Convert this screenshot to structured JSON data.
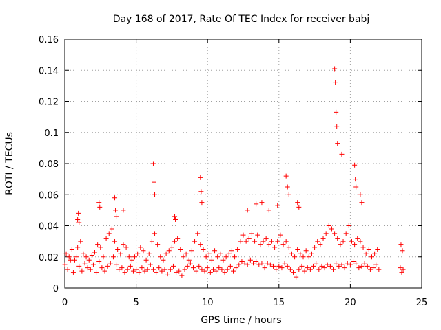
{
  "chart_data": {
    "type": "scatter",
    "title": "Day 168 of 2017, Rate Of TEC Index for receiver babj",
    "xlabel": "GPS time / hours",
    "ylabel": "ROTI / TECUs",
    "xlim": [
      0,
      25
    ],
    "ylim": [
      0,
      0.16
    ],
    "xticks": [
      0,
      5,
      10,
      15,
      20,
      25
    ],
    "xtick_labels": [
      "0",
      "5",
      "10",
      "15",
      "20",
      "25"
    ],
    "yticks": [
      0,
      0.02,
      0.04,
      0.06,
      0.08,
      0.1,
      0.12,
      0.14,
      0.16
    ],
    "ytick_labels": [
      "0",
      "0.02",
      "0.04",
      "0.06",
      "0.08",
      "0.1",
      "0.12",
      "0.14",
      "0.16"
    ],
    "grid": true,
    "marker": "+",
    "color": "#ff0000",
    "series": [
      {
        "name": "ROTI",
        "x": [
          0.0,
          0.2,
          0.4,
          0.6,
          0.8,
          1.0,
          1.2,
          1.4,
          1.6,
          1.8,
          2.0,
          2.2,
          2.4,
          2.6,
          2.8,
          3.0,
          3.2,
          3.4,
          3.6,
          3.8,
          4.0,
          4.2,
          4.4,
          4.6,
          4.8,
          5.0,
          5.2,
          5.4,
          5.6,
          5.8,
          6.0,
          6.2,
          6.4,
          6.6,
          6.8,
          7.0,
          7.2,
          7.4,
          7.6,
          7.8,
          8.0,
          8.2,
          8.4,
          8.6,
          8.8,
          9.0,
          9.2,
          9.4,
          9.6,
          9.8,
          10.0,
          10.2,
          10.4,
          10.6,
          10.8,
          11.0,
          11.2,
          11.4,
          11.6,
          11.8,
          12.0,
          12.2,
          12.4,
          12.6,
          12.8,
          13.0,
          13.2,
          13.4,
          13.6,
          13.8,
          14.0,
          14.2,
          14.4,
          14.6,
          14.8,
          15.0,
          15.2,
          15.4,
          15.6,
          15.8,
          16.0,
          16.2,
          16.4,
          16.6,
          16.8,
          17.0,
          17.2,
          17.4,
          17.6,
          17.8,
          18.0,
          18.2,
          18.4,
          18.6,
          18.8,
          19.0,
          19.2,
          19.4,
          19.6,
          19.8,
          20.0,
          20.2,
          20.4,
          20.6,
          20.8,
          21.0,
          21.2,
          21.4,
          21.6,
          21.8,
          22.0,
          23.5,
          23.6,
          23.7,
          0.1,
          0.3,
          0.5,
          0.7,
          0.9,
          1.1,
          1.3,
          1.5,
          1.7,
          1.9,
          2.1,
          2.3,
          2.5,
          2.7,
          2.9,
          3.1,
          3.3,
          3.5,
          3.7,
          3.9,
          4.1,
          4.3,
          4.5,
          4.7,
          4.9,
          5.1,
          5.3,
          5.5,
          5.7,
          5.9,
          6.1,
          6.3,
          6.5,
          6.7,
          6.9,
          7.1,
          7.3,
          7.5,
          7.7,
          7.9,
          8.1,
          8.3,
          8.5,
          8.7,
          8.9,
          9.1,
          9.3,
          9.5,
          9.7,
          9.9,
          10.1,
          10.3,
          10.5,
          10.7,
          10.9,
          11.1,
          11.3,
          11.5,
          11.7,
          11.9,
          12.1,
          12.3,
          12.5,
          12.7,
          12.9,
          13.1,
          13.3,
          13.5,
          13.7,
          13.9,
          14.1,
          14.3,
          14.5,
          14.7,
          14.9,
          15.1,
          15.3,
          15.5,
          15.7,
          15.9,
          16.1,
          16.3,
          16.5,
          16.7,
          16.9,
          17.1,
          17.3,
          17.5,
          17.7,
          17.9,
          18.1,
          18.3,
          18.5,
          18.7,
          18.9,
          19.1,
          19.3,
          19.5,
          19.7,
          19.9,
          20.1,
          20.3,
          20.5,
          20.7,
          20.9,
          21.1,
          21.3,
          21.5,
          21.7,
          21.9,
          23.55,
          23.65,
          0.9,
          0.95,
          1.0,
          2.4,
          2.45,
          3.5,
          3.55,
          3.6,
          4.1,
          6.2,
          6.25,
          6.3,
          7.7,
          7.75,
          9.5,
          9.55,
          9.6,
          12.8,
          13.4,
          13.8,
          14.3,
          14.9,
          15.5,
          15.6,
          15.7,
          16.3,
          16.4,
          18.9,
          18.95,
          19.0,
          19.05,
          19.1,
          19.4,
          20.3,
          20.35,
          20.4,
          20.7,
          20.8
        ],
        "y": [
          0.015,
          0.012,
          0.018,
          0.01,
          0.02,
          0.014,
          0.011,
          0.016,
          0.013,
          0.012,
          0.015,
          0.01,
          0.017,
          0.013,
          0.011,
          0.014,
          0.016,
          0.02,
          0.015,
          0.012,
          0.013,
          0.01,
          0.012,
          0.014,
          0.011,
          0.012,
          0.01,
          0.013,
          0.011,
          0.012,
          0.015,
          0.012,
          0.01,
          0.013,
          0.011,
          0.012,
          0.009,
          0.012,
          0.014,
          0.01,
          0.011,
          0.008,
          0.012,
          0.014,
          0.016,
          0.013,
          0.011,
          0.014,
          0.012,
          0.011,
          0.013,
          0.01,
          0.012,
          0.011,
          0.013,
          0.012,
          0.01,
          0.012,
          0.014,
          0.011,
          0.013,
          0.015,
          0.017,
          0.016,
          0.015,
          0.018,
          0.016,
          0.017,
          0.015,
          0.016,
          0.013,
          0.016,
          0.015,
          0.014,
          0.012,
          0.014,
          0.013,
          0.016,
          0.014,
          0.012,
          0.01,
          0.007,
          0.012,
          0.014,
          0.011,
          0.013,
          0.012,
          0.014,
          0.016,
          0.012,
          0.014,
          0.013,
          0.015,
          0.014,
          0.012,
          0.016,
          0.014,
          0.015,
          0.013,
          0.016,
          0.015,
          0.017,
          0.016,
          0.013,
          0.014,
          0.016,
          0.014,
          0.012,
          0.013,
          0.015,
          0.012,
          0.013,
          0.01,
          0.012,
          0.022,
          0.02,
          0.025,
          0.018,
          0.026,
          0.03,
          0.022,
          0.02,
          0.018,
          0.021,
          0.023,
          0.028,
          0.026,
          0.02,
          0.032,
          0.035,
          0.038,
          0.03,
          0.025,
          0.022,
          0.028,
          0.026,
          0.02,
          0.018,
          0.02,
          0.022,
          0.026,
          0.024,
          0.018,
          0.022,
          0.03,
          0.035,
          0.028,
          0.02,
          0.018,
          0.022,
          0.024,
          0.026,
          0.03,
          0.032,
          0.025,
          0.02,
          0.022,
          0.018,
          0.024,
          0.03,
          0.035,
          0.028,
          0.025,
          0.02,
          0.022,
          0.018,
          0.024,
          0.02,
          0.022,
          0.018,
          0.02,
          0.022,
          0.024,
          0.02,
          0.025,
          0.03,
          0.034,
          0.03,
          0.032,
          0.035,
          0.03,
          0.034,
          0.028,
          0.03,
          0.032,
          0.028,
          0.03,
          0.026,
          0.03,
          0.034,
          0.028,
          0.03,
          0.026,
          0.022,
          0.02,
          0.025,
          0.022,
          0.02,
          0.024,
          0.02,
          0.022,
          0.026,
          0.03,
          0.028,
          0.032,
          0.035,
          0.04,
          0.038,
          0.035,
          0.032,
          0.028,
          0.03,
          0.035,
          0.04,
          0.03,
          0.028,
          0.032,
          0.03,
          0.026,
          0.022,
          0.025,
          0.02,
          0.022,
          0.025,
          0.028,
          0.024,
          0.044,
          0.048,
          0.042,
          0.055,
          0.052,
          0.058,
          0.05,
          0.046,
          0.05,
          0.08,
          0.068,
          0.06,
          0.046,
          0.044,
          0.071,
          0.062,
          0.055,
          0.05,
          0.054,
          0.055,
          0.05,
          0.053,
          0.072,
          0.065,
          0.06,
          0.055,
          0.052,
          0.141,
          0.132,
          0.113,
          0.104,
          0.093,
          0.086,
          0.079,
          0.07,
          0.065,
          0.06,
          0.055
        ]
      }
    ]
  }
}
